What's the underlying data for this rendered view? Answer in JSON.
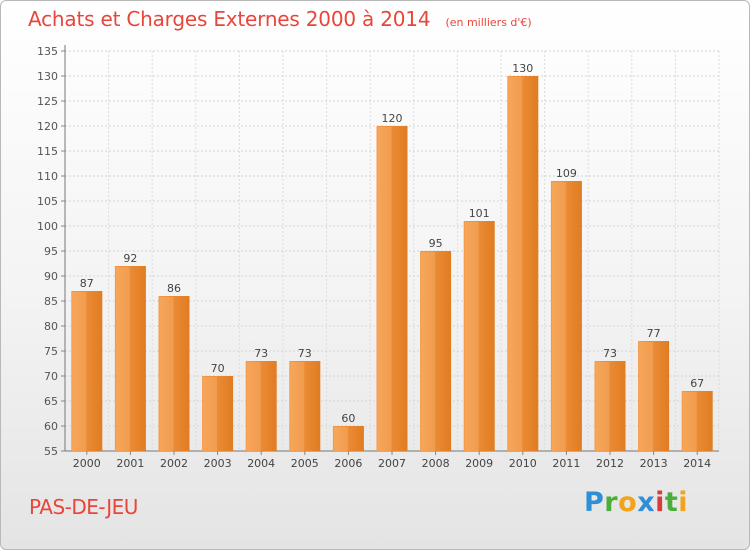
{
  "header": {
    "title": "Achats et Charges Externes 2000 à 2014",
    "subtitle": "(en milliers d'€)"
  },
  "footer": {
    "commune": "PAS-DE-JEU",
    "brand": "Proxiti"
  },
  "colors": {
    "bar_light": "#f7a85a",
    "bar_dark": "#e07c22",
    "title": "#e8463a",
    "grid": "#cfcfcf"
  },
  "chart_data": {
    "type": "bar",
    "title": "Achats et Charges Externes 2000 à 2014",
    "subtitle": "(en milliers d'€)",
    "categories": [
      "2000",
      "2001",
      "2002",
      "2003",
      "2004",
      "2005",
      "2006",
      "2007",
      "2008",
      "2009",
      "2010",
      "2011",
      "2012",
      "2013",
      "2014"
    ],
    "values": [
      87,
      92,
      86,
      70,
      73,
      73,
      60,
      120,
      95,
      101,
      130,
      109,
      73,
      77,
      67
    ],
    "ylim": [
      55,
      135
    ],
    "yticks": [
      55,
      60,
      65,
      70,
      75,
      80,
      85,
      90,
      95,
      100,
      105,
      110,
      115,
      120,
      125,
      130,
      135
    ],
    "grid": true,
    "data_labels": true
  }
}
